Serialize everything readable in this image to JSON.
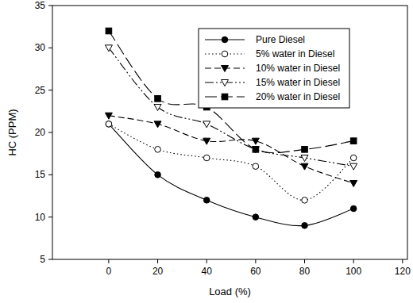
{
  "chart_data": {
    "type": "line",
    "x_label": "Load (%)",
    "y_label": "HC (PPM)",
    "x": [
      0,
      20,
      40,
      60,
      80,
      100
    ],
    "xlim": [
      -23,
      122
    ],
    "xticks": [
      0,
      20,
      40,
      60,
      80,
      100,
      120
    ],
    "ylim": [
      5,
      35
    ],
    "yticks": [
      5,
      10,
      15,
      20,
      25,
      30,
      35
    ],
    "grid": false,
    "legend": "upper right",
    "series": [
      {
        "name": "Pure Diesel",
        "color": "#000000",
        "marker": "circle",
        "line_style": "solid",
        "values": [
          21,
          15,
          12,
          10,
          9,
          11
        ]
      },
      {
        "name": "5% water in Diesel",
        "color": "#000000",
        "marker": "circle_open",
        "line_style": "dotted",
        "values": [
          21,
          18,
          17,
          16,
          12,
          17
        ]
      },
      {
        "name": "10% water in Diesel",
        "color": "#000000",
        "marker": "triangle_down",
        "line_style": "dashed",
        "values": [
          22,
          21,
          19,
          19,
          16,
          14
        ]
      },
      {
        "name": "15% water in Diesel",
        "color": "#000000",
        "marker": "triangle_down_open",
        "line_style": "dashdotdot",
        "values": [
          30,
          23,
          21,
          18,
          17,
          16
        ]
      },
      {
        "name": "20% water in Diesel",
        "color": "#000000",
        "marker": "square",
        "line_style": "longdash",
        "values": [
          32,
          24,
          23,
          18,
          18,
          19
        ]
      }
    ]
  }
}
